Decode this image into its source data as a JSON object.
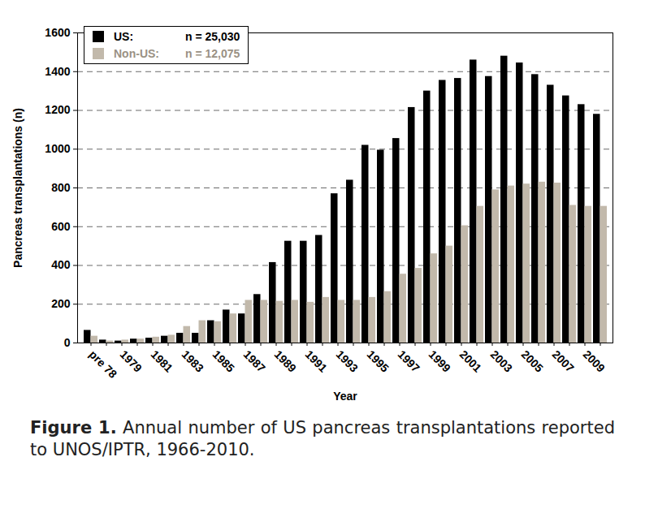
{
  "chart_data": {
    "type": "bar",
    "title": "Figure 1.",
    "subtitle": "Annual number of US pancreas transplantations reported to UNOS/IPTR, 1966-2010.",
    "x_label": "Year",
    "y_label": "Pancreas transplantations (n)",
    "categories": [
      "pre 78",
      null,
      "1979",
      null,
      "1981",
      null,
      "1983",
      null,
      "1985",
      null,
      "1987",
      null,
      "1989",
      null,
      "1991",
      null,
      "1993",
      null,
      "1995",
      null,
      "1997",
      null,
      "1999",
      null,
      "2001",
      null,
      "2003",
      null,
      "2005",
      null,
      "2007",
      null,
      "2009",
      null
    ],
    "series": [
      {
        "name": "US:",
        "color": "#000000",
        "values": [
          65,
          15,
          10,
          20,
          25,
          35,
          50,
          50,
          115,
          170,
          150,
          250,
          415,
          525,
          525,
          555,
          770,
          840,
          1020,
          995,
          1055,
          1215,
          1300,
          1355,
          1365,
          1460,
          1375,
          1480,
          1445,
          1385,
          1330,
          1275,
          1230,
          1180
        ]
      },
      {
        "name": "Non-US:",
        "color": "#c2b9ab",
        "values": [
          35,
          10,
          15,
          20,
          30,
          40,
          85,
          115,
          110,
          150,
          220,
          220,
          215,
          220,
          210,
          235,
          220,
          220,
          235,
          265,
          355,
          385,
          460,
          500,
          605,
          705,
          790,
          810,
          820,
          830,
          825,
          710,
          705,
          705
        ]
      }
    ],
    "annotations": [
      "n = 25,030",
      "n = 12,075"
    ],
    "ylim": [
      0,
      1600
    ],
    "yticks": [
      0,
      200,
      400,
      600,
      800,
      1000,
      1200,
      1400,
      1600
    ],
    "grid": true,
    "legend": "top-left"
  }
}
